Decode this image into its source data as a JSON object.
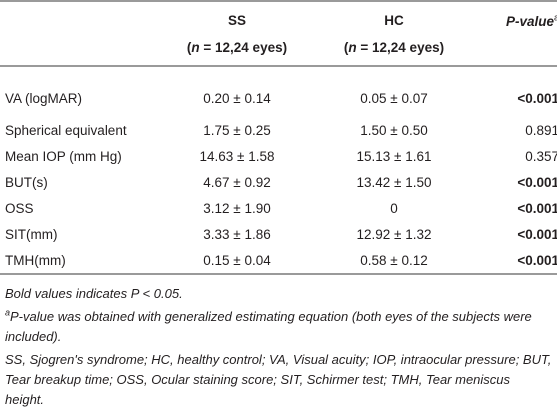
{
  "table": {
    "header": {
      "ss": {
        "name": "SS",
        "open": "(",
        "n": "n",
        "rest": " = 12,24 eyes)"
      },
      "hc": {
        "name": "HC",
        "open": "(",
        "n": "n",
        "rest": " = 12,24 eyes)"
      },
      "p": {
        "name": "P-value",
        "sup": "a"
      }
    },
    "rows": [
      {
        "label": "VA (logMAR)",
        "ss": "0.20 ± 0.14",
        "hc": "0.05 ± 0.07",
        "p": "<0.001",
        "bold": true
      },
      {
        "label": "Spherical equivalent",
        "ss": "1.75 ± 0.25",
        "hc": "1.50 ± 0.50",
        "p": "0.891",
        "bold": false
      },
      {
        "label": "Mean IOP (mm Hg)",
        "ss": "14.63 ± 1.58",
        "hc": "15.13 ± 1.61",
        "p": "0.357",
        "bold": false
      },
      {
        "label": "BUT(s)",
        "ss": "4.67 ± 0.92",
        "hc": "13.42 ± 1.50",
        "p": "<0.001",
        "bold": true
      },
      {
        "label": "OSS",
        "ss": "3.12 ± 1.90",
        "hc": "0",
        "p": "<0.001",
        "bold": true
      },
      {
        "label": "SIT(mm)",
        "ss": "3.33 ± 1.86",
        "hc": "12.92 ± 1.32",
        "p": "<0.001",
        "bold": true
      },
      {
        "label": "TMH(mm)",
        "ss": "0.15 ± 0.04",
        "hc": "0.58 ± 0.12",
        "p": "<0.001",
        "bold": true
      }
    ]
  },
  "footnotes": {
    "bold_note": {
      "before": "Bold values indicates ",
      "italic": "P < 0.05",
      "after": "."
    },
    "a_note": {
      "sup": "a",
      "italic": "P-value",
      "rest": " was obtained with generalized estimating equation (both eyes of the subjects were included)."
    },
    "abbreviations": "SS, Sjogren's syndrome; HC, healthy control; VA, Visual acuity; IOP, intraocular pressure; BUT, Tear breakup time; OSS, Ocular staining score; SIT, Schirmer test; TMH, Tear meniscus height."
  }
}
